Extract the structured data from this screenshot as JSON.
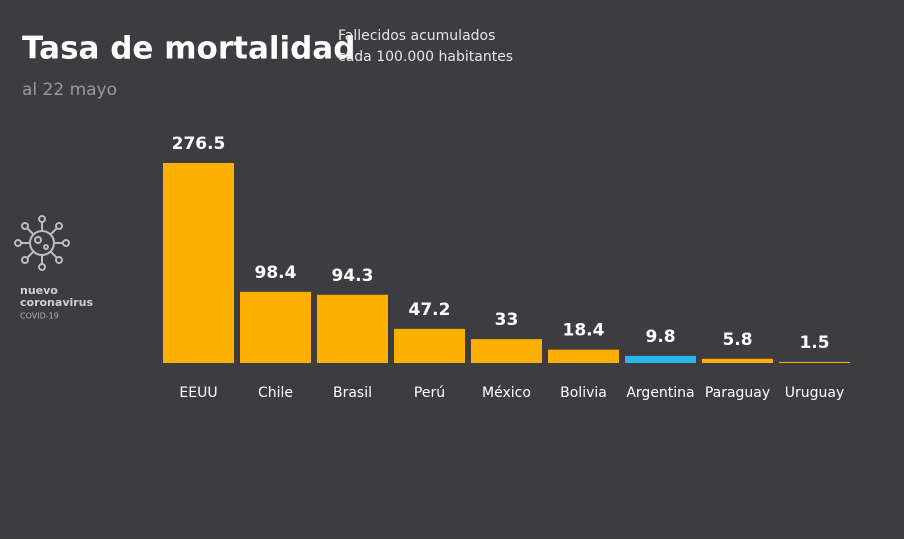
{
  "chart_data": {
    "type": "bar",
    "title": "Tasa de mortalidad",
    "subtitle": [
      "Fallecidos acumulados",
      "cada 100.000 habitantes"
    ],
    "date": "al 22 mayo",
    "categories": [
      "EEUU",
      "Chile",
      "Brasil",
      "Perú",
      "México",
      "Bolivia",
      "Argentina",
      "Paraguay",
      "Uruguay"
    ],
    "values": [
      276.5,
      98.4,
      94.3,
      47.2,
      33,
      18.4,
      9.8,
      5.8,
      1.5
    ],
    "colors": [
      "#fdb000",
      "#fdb000",
      "#fdb000",
      "#fdb000",
      "#fdb000",
      "#fdb000",
      "#29b6e8",
      "#fdb000",
      "#fdb000"
    ]
  },
  "logo": {
    "lines": [
      "nuevo",
      "coronavirus",
      "COVID-19"
    ]
  }
}
